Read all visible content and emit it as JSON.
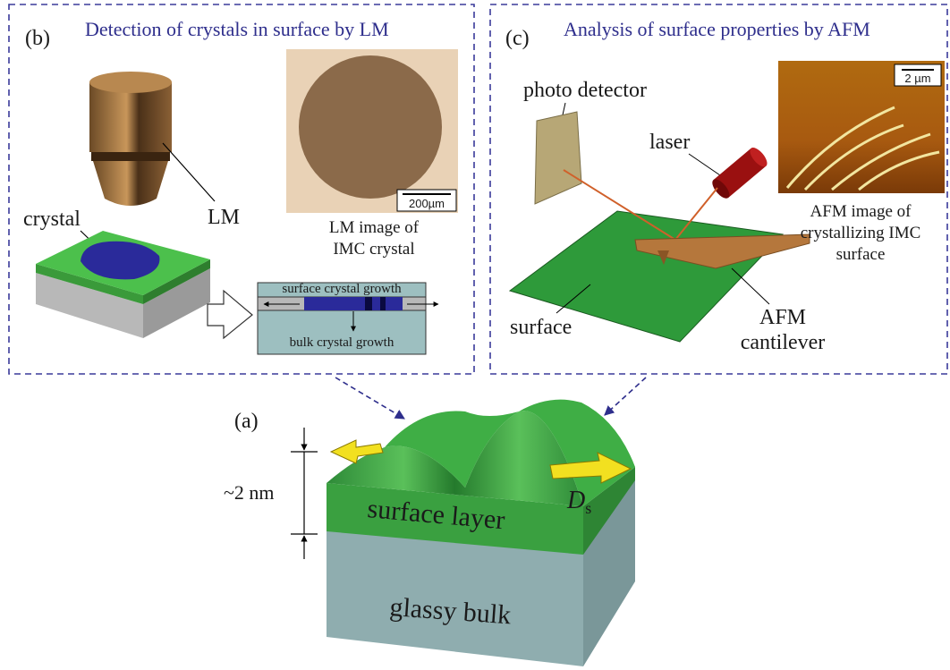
{
  "panel_b": {
    "label": "(b)",
    "title": "Detection of crystals in surface by LM",
    "objective_label": "LM",
    "crystal_label": "crystal",
    "image_caption": [
      "LM image of",
      "IMC crystal"
    ],
    "scale_bar": "200µm",
    "growth": {
      "surface": "surface crystal growth",
      "bulk": "bulk crystal growth"
    }
  },
  "panel_c": {
    "label": "(c)",
    "title": "Analysis of surface properties by AFM",
    "detector_label": "photo detector",
    "laser_label": "laser",
    "scale_bar": "2 µm",
    "image_caption": [
      "AFM image of",
      "crystallizing IMC",
      "surface"
    ],
    "surface_label": "surface",
    "cantilever_label": [
      "AFM",
      "cantilever"
    ]
  },
  "panel_a": {
    "label": "(a)",
    "thickness": "~2 nm",
    "layer_label": "surface layer",
    "bulk_label": "glassy bulk",
    "diffusion": {
      "symbol": "D",
      "subscript": "s"
    }
  }
}
